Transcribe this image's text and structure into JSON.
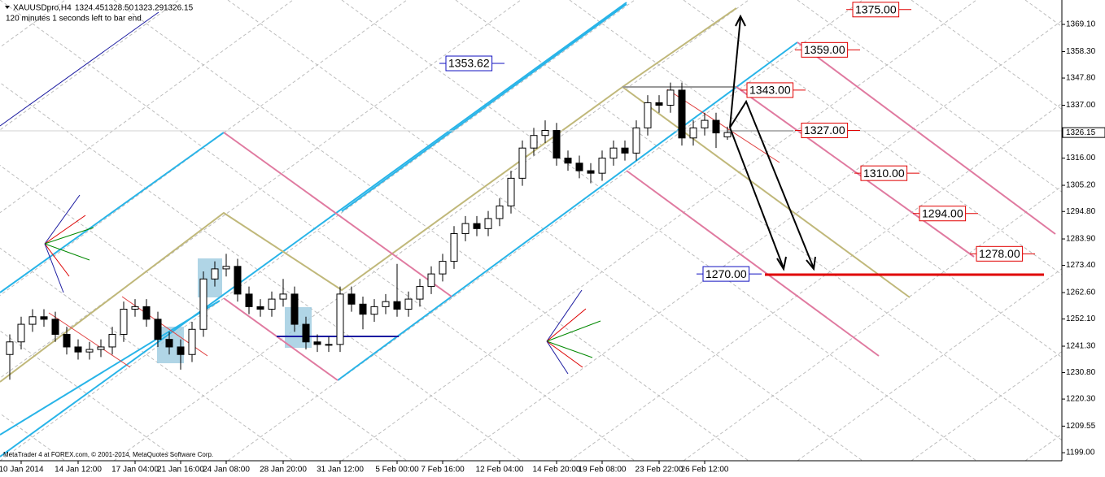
{
  "chart_data": {
    "type": "candlestick",
    "title": "XAUUSDpro,H4",
    "title_values": [
      "1324.45",
      "1328.50",
      "1323.29",
      "1326.15"
    ],
    "subtitle": "120 minutes 1 seconds left to bar end",
    "footer": "MetaTrader 4 at FOREX.com, © 2001-2014, MetaQuotes Software Corp.",
    "categories": [
      null,
      "10 Jan 2014",
      null,
      null,
      null,
      null,
      "14 Jan 12:00",
      null,
      null,
      null,
      null,
      "17 Jan 04:00",
      null,
      null,
      null,
      "21 Jan 16:00",
      null,
      null,
      null,
      "24 Jan 08:00",
      null,
      null,
      null,
      null,
      "28 Jan 20:00",
      null,
      null,
      null,
      null,
      "31 Jan 12:00",
      null,
      null,
      null,
      null,
      "5 Feb 00:00",
      null,
      null,
      null,
      "7 Feb 16:00",
      null,
      null,
      null,
      null,
      "12 Feb 04:00",
      null,
      null,
      null,
      null,
      "14 Feb 20:00",
      null,
      null,
      null,
      "19 Feb 08:00",
      null,
      null,
      null,
      null,
      "23 Feb 22:00",
      null,
      null,
      null,
      "26 Feb 12:00",
      null,
      null
    ],
    "open": [
      1238,
      1243,
      1250,
      1253,
      1252,
      1246,
      1241,
      1239,
      1240,
      1241,
      1246,
      1256,
      1257,
      1252,
      1244,
      1241,
      1238,
      1248,
      1268,
      1272,
      1273,
      1262,
      1257,
      1256,
      1260,
      1262,
      1250,
      1243,
      1242,
      1242,
      1262,
      1258,
      1254,
      1257,
      1259,
      1256,
      1260,
      1265,
      1270,
      1275,
      1286,
      1290,
      1288,
      1292,
      1297,
      1308,
      1320,
      1325,
      1327,
      1316,
      1314,
      1311,
      1310,
      1316,
      1320,
      1318,
      1328,
      1338,
      1337,
      1343,
      1324,
      1328,
      1331,
      1324.45
    ],
    "high": [
      1246,
      1253,
      1256,
      1256,
      1255,
      1249,
      1244,
      1243,
      1244,
      1249,
      1259,
      1260,
      1260,
      1255,
      1247,
      1244,
      1251,
      1271,
      1275,
      1278,
      1276,
      1265,
      1260,
      1263,
      1268,
      1265,
      1253,
      1246,
      1245,
      1265,
      1265,
      1261,
      1260,
      1262,
      1274,
      1263,
      1268,
      1273,
      1278,
      1289,
      1293,
      1293,
      1295,
      1300,
      1311,
      1323,
      1328,
      1331,
      1330,
      1319,
      1317,
      1314,
      1319,
      1323,
      1323,
      1331,
      1341,
      1341,
      1346,
      1346,
      1331,
      1334,
      1334,
      1328.5
    ],
    "low": [
      1228,
      1240,
      1247,
      1249,
      1243,
      1238,
      1236,
      1236,
      1237,
      1238,
      1243,
      1253,
      1249,
      1241,
      1238,
      1232,
      1235,
      1245,
      1265,
      1269,
      1259,
      1254,
      1253,
      1253,
      1257,
      1247,
      1240,
      1239,
      1239,
      1239,
      1255,
      1248,
      1251,
      1254,
      1253,
      1253,
      1257,
      1262,
      1267,
      1272,
      1283,
      1285,
      1285,
      1289,
      1294,
      1305,
      1317,
      1322,
      1313,
      1311,
      1308,
      1306,
      1307,
      1313,
      1315,
      1315,
      1325,
      1334,
      1334,
      1321,
      1321,
      1325,
      1320,
      1323.29
    ],
    "close": [
      1243,
      1250,
      1253,
      1252,
      1246,
      1241,
      1239,
      1240,
      1241,
      1246,
      1256,
      1257,
      1252,
      1244,
      1241,
      1238,
      1248,
      1268,
      1272,
      1273,
      1262,
      1257,
      1256,
      1260,
      1262,
      1250,
      1243,
      1242,
      1242,
      1262,
      1258,
      1254,
      1257,
      1259,
      1256,
      1260,
      1265,
      1270,
      1275,
      1286,
      1290,
      1288,
      1292,
      1297,
      1308,
      1320,
      1325,
      1327,
      1316,
      1314,
      1311,
      1310,
      1316,
      1320,
      1318,
      1328,
      1338,
      1337,
      1343,
      1324,
      1328,
      1331,
      1326,
      1326.15
    ],
    "last_price": {
      "value": 1326.15,
      "label": "1326.15"
    },
    "ylim": [
      1195.8,
      1378.8
    ],
    "yticks": [
      {
        "value": 1199,
        "label": "1199.00"
      },
      {
        "value": 1209.55,
        "label": "1209.55"
      },
      {
        "value": 1220.3,
        "label": "1220.30"
      },
      {
        "value": 1230.8,
        "label": "1230.80"
      },
      {
        "value": 1241.3,
        "label": "1241.30"
      },
      {
        "value": 1252.1,
        "label": "1252.10"
      },
      {
        "value": 1262.6,
        "label": "1262.60"
      },
      {
        "value": 1273.4,
        "label": "1273.40"
      },
      {
        "value": 1283.9,
        "label": "1283.90"
      },
      {
        "value": 1294.8,
        "label": "1294.80"
      },
      {
        "value": 1305.2,
        "label": "1305.20"
      },
      {
        "value": 1316,
        "label": "1316.00"
      },
      {
        "value": 1337,
        "label": "1337.00"
      },
      {
        "value": 1347.8,
        "label": "1347.80"
      },
      {
        "value": 1358.3,
        "label": "1358.30"
      },
      {
        "value": 1369.1,
        "label": "1369.10"
      }
    ],
    "annotations": [
      {
        "value": 1375,
        "label": "1375.00",
        "color": "#e00000"
      },
      {
        "value": 1359,
        "label": "1359.00",
        "color": "#e00000"
      },
      {
        "value": 1343,
        "label": "1343.00",
        "color": "#e00000"
      },
      {
        "value": 1327,
        "label": "1327.00",
        "color": "#e00000"
      },
      {
        "value": 1310,
        "label": "1310.00",
        "color": "#e00000"
      },
      {
        "value": 1294,
        "label": "1294.00",
        "color": "#e00000"
      },
      {
        "value": 1278,
        "label": "1278.00",
        "color": "#e00000"
      },
      {
        "value": 1353.62,
        "label": "1353.62",
        "color": "#1010c0"
      },
      {
        "value": 1270,
        "label": "1270.00",
        "color": "#1010c0"
      }
    ]
  }
}
